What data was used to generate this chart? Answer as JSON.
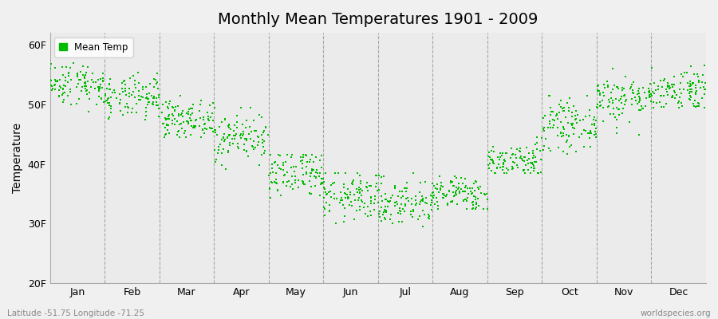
{
  "title": "Monthly Mean Temperatures 1901 - 2009",
  "ylabel": "Temperature",
  "xlabel_bottom_left": "Latitude -51.75 Longitude -71.25",
  "xlabel_bottom_right": "worldspecies.org",
  "legend_label": "Mean Temp",
  "yticks": [
    "20F",
    "30F",
    "40F",
    "50F",
    "60F"
  ],
  "ytick_values": [
    20,
    30,
    40,
    50,
    60
  ],
  "ylim": [
    20,
    62
  ],
  "months": [
    "Jan",
    "Feb",
    "Mar",
    "Apr",
    "May",
    "Jun",
    "Jul",
    "Aug",
    "Sep",
    "Oct",
    "Nov",
    "Dec"
  ],
  "dot_color": "#00bb00",
  "bg_color": "#f0f0f0",
  "plot_bg_color": "#ebebeb",
  "grid_color": "#888888",
  "title_fontsize": 14,
  "axis_fontsize": 10,
  "tick_fontsize": 9,
  "month_means": [
    53.5,
    51.0,
    47.5,
    44.5,
    38.0,
    34.5,
    33.5,
    35.0,
    40.5,
    46.5,
    51.0,
    52.5
  ],
  "month_stds": [
    1.8,
    1.8,
    1.5,
    2.0,
    2.2,
    2.0,
    2.0,
    1.5,
    1.5,
    2.0,
    2.0,
    1.8
  ],
  "month_mins": [
    48.0,
    46.5,
    44.5,
    39.0,
    31.5,
    28.5,
    27.0,
    32.5,
    38.5,
    38.5,
    44.0,
    49.5
  ],
  "month_maxes": [
    57.5,
    55.5,
    51.5,
    49.5,
    41.5,
    38.5,
    38.5,
    38.0,
    44.5,
    51.5,
    56.0,
    56.5
  ],
  "n_years": 109,
  "seed": 42
}
